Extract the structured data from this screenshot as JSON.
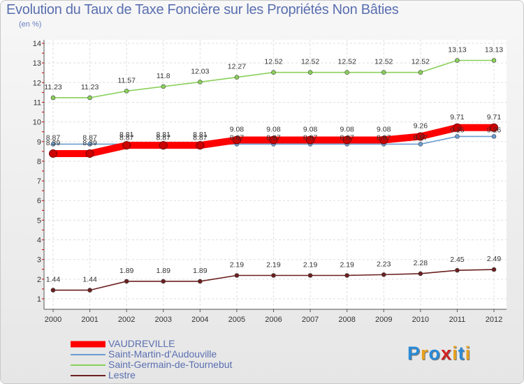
{
  "title": "Evolution du Taux de Taxe Foncière sur les Propriétés Non Bâties",
  "subtitle": "(en %)",
  "logo": {
    "letters": [
      "P",
      "r",
      "o",
      "x",
      "i",
      "t",
      "i"
    ],
    "colors": [
      "#2a8ad6",
      "#e8a21c",
      "#2a8ad6",
      "#d22222",
      "#e8a21c",
      "#2a8ad6",
      "#e8a21c"
    ]
  },
  "chart_data": {
    "type": "line",
    "title": "Evolution du Taux de Taxe Foncière sur les Propriétés Non Bâties",
    "ylabel": "(en %)",
    "ylim": [
      1,
      14
    ],
    "y_ticks": [
      "1",
      "2",
      "3",
      "4",
      "5",
      "6",
      "7",
      "8",
      "9",
      "10",
      "11",
      "12",
      "13",
      "14"
    ],
    "categories": [
      "2000",
      "2001",
      "2002",
      "2003",
      "2004",
      "2005",
      "2006",
      "2007",
      "2008",
      "2009",
      "2010",
      "2011",
      "2012"
    ],
    "series": [
      {
        "name": "VAUDREVILLE",
        "color": "#ff0000",
        "values": [
          8.39,
          8.39,
          8.81,
          8.81,
          8.81,
          9.08,
          9.08,
          9.08,
          9.08,
          9.08,
          9.26,
          9.71,
          9.71
        ],
        "labels": [
          "8.39",
          "8.39",
          "8.81",
          "8.81",
          "8.81",
          "9.08",
          "9.08",
          "9.08",
          "9.08",
          "9.08",
          "9.26",
          "9.71",
          "9.71"
        ]
      },
      {
        "name": "Saint-Martin-d'Audouville",
        "color": "#6b9ccf",
        "values": [
          8.87,
          8.87,
          8.87,
          8.87,
          8.87,
          8.87,
          8.87,
          8.87,
          8.87,
          8.87,
          8.87,
          9.26,
          9.26
        ],
        "labels": [
          "8.87",
          "8.87",
          "8.87",
          "8.87",
          "8.87",
          "8.87",
          "8.87",
          "8.87",
          "8.87",
          "8.87",
          "8.87",
          "9.26",
          "9.26"
        ]
      },
      {
        "name": "Saint-Germain-de-Tournebut",
        "color": "#8ad05a",
        "values": [
          11.23,
          11.23,
          11.57,
          11.8,
          12.03,
          12.27,
          12.52,
          12.52,
          12.52,
          12.52,
          12.52,
          13.13,
          13.13
        ],
        "labels": [
          "11.23",
          "11.23",
          "11.57",
          "11.8",
          "12.03",
          "12.27",
          "12.52",
          "12.52",
          "12.52",
          "12.52",
          "12.52",
          "13.13",
          "13.13"
        ]
      },
      {
        "name": "Lestre",
        "color": "#6b1f1f",
        "values": [
          1.44,
          1.44,
          1.89,
          1.89,
          1.89,
          2.19,
          2.19,
          2.19,
          2.19,
          2.23,
          2.28,
          2.45,
          2.49
        ],
        "labels": [
          "1.44",
          "1.44",
          "1.89",
          "1.89",
          "1.89",
          "2.19",
          "2.19",
          "2.19",
          "2.19",
          "2.23",
          "2.28",
          "2.45",
          "2.49"
        ]
      }
    ]
  }
}
